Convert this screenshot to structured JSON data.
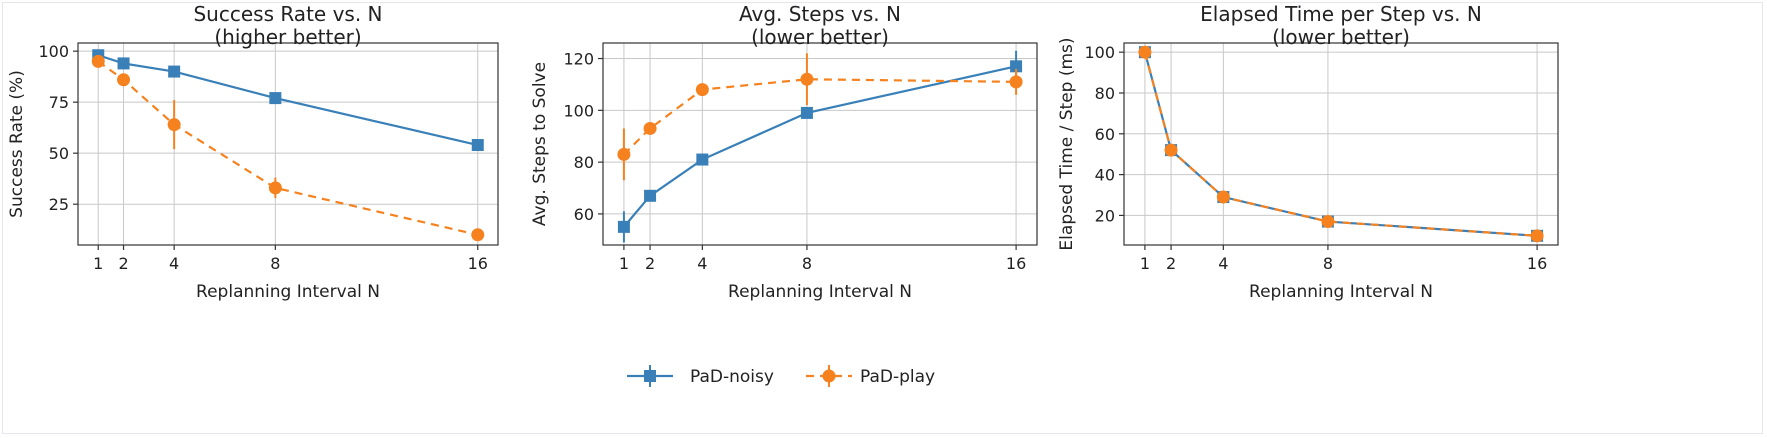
{
  "colors": {
    "noisy": "#3a80b8",
    "play": "#f5821f",
    "grid": "#c8c8c8",
    "axis": "#333333"
  },
  "legend": {
    "placement": "bottom-center",
    "entries": [
      {
        "name": "PaD-noisy",
        "marker": "square",
        "line": "solid",
        "color_key": "noisy"
      },
      {
        "name": "PaD-play",
        "marker": "circle",
        "line": "dashed",
        "color_key": "play"
      }
    ]
  },
  "chart_data": [
    {
      "type": "line",
      "title": [
        "Success Rate vs. N",
        "(higher better)"
      ],
      "xlabel": "Replanning Interval N",
      "ylabel": "Success Rate (%)",
      "x": [
        1,
        2,
        4,
        8,
        16
      ],
      "xticks": [
        1,
        2,
        4,
        8,
        16
      ],
      "yticks": [
        25,
        50,
        75,
        100
      ],
      "xlim": [
        0.2,
        16.8
      ],
      "ylim": [
        5,
        104
      ],
      "grid": true,
      "series": [
        {
          "name": "PaD-noisy",
          "values": [
            98,
            94,
            90,
            77,
            54
          ],
          "errors": [
            0,
            0,
            0,
            0,
            0
          ]
        },
        {
          "name": "PaD-play",
          "values": [
            95,
            86,
            64,
            33,
            10
          ],
          "errors": [
            0,
            0,
            12,
            5,
            0
          ]
        }
      ]
    },
    {
      "type": "line",
      "title": [
        "Avg. Steps vs. N",
        "(lower better)"
      ],
      "xlabel": "Replanning Interval N",
      "ylabel": "Avg. Steps to Solve",
      "x": [
        1,
        2,
        4,
        8,
        16
      ],
      "xticks": [
        1,
        2,
        4,
        8,
        16
      ],
      "yticks": [
        60,
        80,
        100,
        120
      ],
      "xlim": [
        0.2,
        16.8
      ],
      "ylim": [
        48,
        126
      ],
      "grid": true,
      "series": [
        {
          "name": "PaD-noisy",
          "values": [
            55,
            67,
            81,
            99,
            117
          ],
          "errors": [
            6,
            0,
            0,
            0,
            6
          ]
        },
        {
          "name": "PaD-play",
          "values": [
            83,
            93,
            108,
            112,
            111
          ],
          "errors": [
            10,
            0,
            0,
            10,
            5
          ]
        }
      ]
    },
    {
      "type": "line",
      "title": [
        "Elapsed Time per Step vs. N",
        "(lower better)"
      ],
      "xlabel": "Replanning Interval N",
      "ylabel": "Elapsed Time / Step (ms)",
      "x": [
        1,
        2,
        4,
        8,
        16
      ],
      "xticks": [
        1,
        2,
        4,
        8,
        16
      ],
      "yticks": [
        20,
        40,
        60,
        80,
        100
      ],
      "xlim": [
        0.2,
        16.8
      ],
      "ylim": [
        5.5,
        104.5
      ],
      "grid": true,
      "series": [
        {
          "name": "PaD-noisy",
          "values": [
            100,
            52,
            29,
            17,
            10
          ],
          "errors": [
            0,
            0,
            0,
            0,
            0
          ]
        },
        {
          "name": "PaD-play",
          "values": [
            100,
            52,
            29,
            17,
            10
          ],
          "errors": [
            0,
            0,
            0,
            0,
            0
          ]
        }
      ]
    }
  ]
}
